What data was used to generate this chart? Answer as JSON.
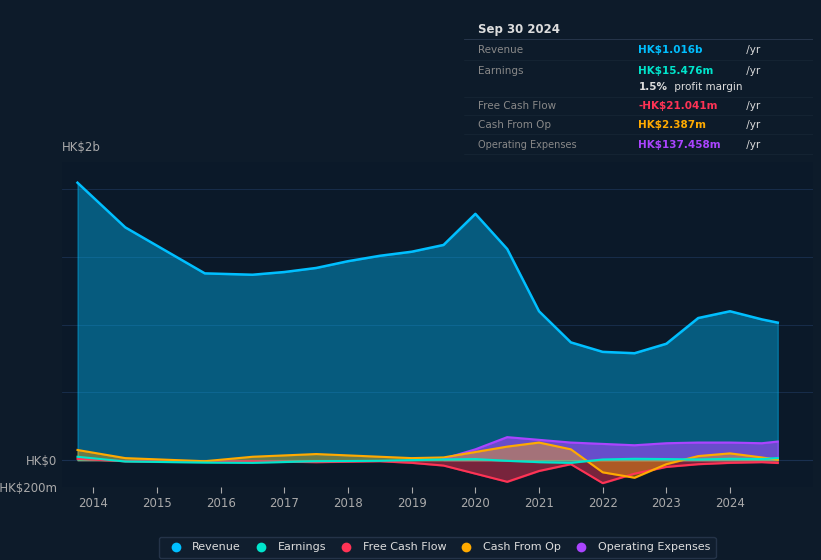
{
  "bg_color": "#0d1b2a",
  "plot_bg_color": "#0b1929",
  "grid_color": "#1a3050",
  "text_color": "#aaaaaa",
  "white_color": "#dddddd",
  "gray_color": "#888888",
  "ylim": [
    -200,
    2200
  ],
  "xlim": [
    2013.5,
    2025.3
  ],
  "revenue_x": [
    2013.75,
    2014.5,
    2015.75,
    2016.5,
    2017.0,
    2017.5,
    2018.0,
    2018.5,
    2019.0,
    2019.5,
    2020.0,
    2020.5,
    2021.0,
    2021.5,
    2022.0,
    2022.5,
    2023.0,
    2023.5,
    2024.0,
    2024.5,
    2024.75
  ],
  "revenue_y": [
    2050,
    1720,
    1380,
    1370,
    1390,
    1420,
    1470,
    1510,
    1540,
    1590,
    1820,
    1560,
    1100,
    870,
    800,
    790,
    860,
    1050,
    1100,
    1040,
    1016
  ],
  "earnings_x": [
    2013.75,
    2014.5,
    2015.75,
    2016.5,
    2017.5,
    2018.5,
    2019.0,
    2019.5,
    2020.0,
    2020.5,
    2021.0,
    2021.5,
    2022.0,
    2022.5,
    2023.0,
    2023.5,
    2024.0,
    2024.5,
    2024.75
  ],
  "earnings_y": [
    25,
    -10,
    -18,
    -20,
    -8,
    -5,
    0,
    5,
    8,
    -5,
    -15,
    -20,
    5,
    10,
    8,
    5,
    10,
    8,
    15.476
  ],
  "fcf_x": [
    2013.75,
    2014.5,
    2015.75,
    2016.5,
    2017.5,
    2018.5,
    2019.0,
    2019.5,
    2020.0,
    2020.5,
    2021.0,
    2021.5,
    2022.0,
    2022.5,
    2023.0,
    2023.5,
    2024.0,
    2024.5,
    2024.75
  ],
  "fcf_y": [
    10,
    -8,
    -12,
    -8,
    -15,
    -8,
    -20,
    -40,
    -100,
    -160,
    -80,
    -30,
    -170,
    -100,
    -50,
    -30,
    -20,
    -15,
    -21.041
  ],
  "cashfromop_x": [
    2013.75,
    2014.5,
    2015.75,
    2016.5,
    2017.5,
    2018.5,
    2019.0,
    2019.5,
    2020.0,
    2020.5,
    2021.0,
    2021.5,
    2022.0,
    2022.5,
    2023.0,
    2023.5,
    2024.0,
    2024.5,
    2024.75
  ],
  "cashfromop_y": [
    75,
    15,
    -8,
    25,
    45,
    25,
    15,
    20,
    60,
    100,
    130,
    80,
    -90,
    -130,
    -30,
    30,
    50,
    20,
    2.387
  ],
  "opex_x": [
    2019.5,
    2020.0,
    2020.5,
    2021.0,
    2021.5,
    2022.0,
    2022.5,
    2023.0,
    2023.5,
    2024.0,
    2024.5,
    2024.75
  ],
  "opex_y": [
    10,
    80,
    170,
    150,
    130,
    120,
    110,
    125,
    130,
    130,
    125,
    137.458
  ],
  "revenue_color": "#00bfff",
  "earnings_color": "#00e5cc",
  "fcf_color": "#ff3355",
  "cashfromop_color": "#ffaa00",
  "opex_color": "#aa44ff",
  "legend_items": [
    "Revenue",
    "Earnings",
    "Free Cash Flow",
    "Cash From Op",
    "Operating Expenses"
  ],
  "tooltip_title": "Sep 30 2024",
  "tt_row1_label": "Revenue",
  "tt_row1_value": "HK$1.016b",
  "tt_row1_suffix": " /yr",
  "tt_row2_label": "Earnings",
  "tt_row2_value": "HK$15.476m",
  "tt_row2_suffix": " /yr",
  "tt_row2b_pct": "1.5%",
  "tt_row2b_text": " profit margin",
  "tt_row3_label": "Free Cash Flow",
  "tt_row3_value": "-HK$21.041m",
  "tt_row3_suffix": " /yr",
  "tt_row4_label": "Cash From Op",
  "tt_row4_value": "HK$2.387m",
  "tt_row4_suffix": " /yr",
  "tt_row5_label": "Operating Expenses",
  "tt_row5_value": "HK$137.458m",
  "tt_row5_suffix": " /yr"
}
